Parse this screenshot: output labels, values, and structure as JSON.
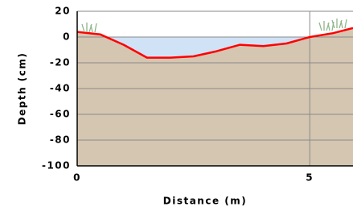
{
  "chart_data": {
    "type": "area",
    "x_label": "Distance (m)",
    "y_label": "Depth (cm)",
    "x": [
      0,
      0.5,
      1,
      1.5,
      2,
      2.5,
      3,
      3.5,
      4,
      4.5,
      5,
      5.5,
      5.93
    ],
    "values": [
      4,
      2,
      -6,
      -16,
      -16,
      -15,
      -11,
      -6,
      -7,
      -5,
      0,
      3,
      7
    ],
    "color": "#ff0000",
    "fill_color": "#d5c6b1",
    "water_color": "#cfe2f6",
    "xlim": [
      0,
      5.93
    ],
    "xticks": [
      0,
      5
    ],
    "ylim": [
      -100,
      20
    ],
    "yticks": [
      20,
      0,
      -20,
      -40,
      -60,
      -80,
      -100
    ],
    "grid": true
  }
}
